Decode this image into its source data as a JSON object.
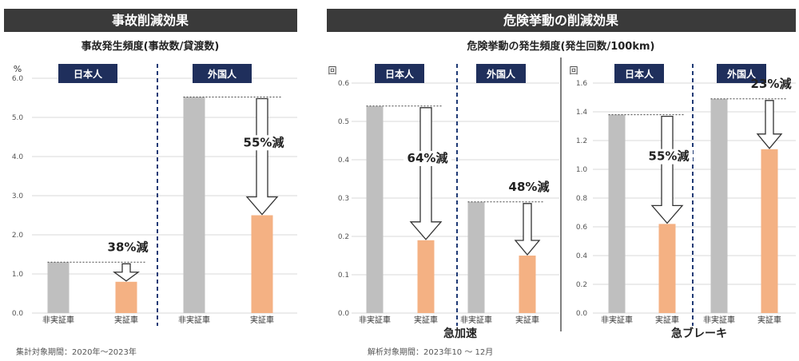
{
  "colors": {
    "header_bg": "#3a3a3a",
    "group_label_bg": "#1f2f5c",
    "divider": "#1f3a75",
    "gray_bar": "#bfbfbf",
    "orange_bar": "#f4b183",
    "grid": "#d9d9d9"
  },
  "left_panel": {
    "header": "事故削減効果",
    "subtitle": "事故発生頻度(事故数/貸渡数)",
    "note": "集計対象期間：2020年〜2023年"
  },
  "right_panel": {
    "header": "危険挙動の削減効果",
    "subtitle": "危険挙動の発生頻度(発生回数/100km)",
    "note": "解析対象期間：2023年10 〜 12月"
  },
  "chart_data": [
    {
      "type": "bar",
      "title": "",
      "unit": "%",
      "ylim": [
        0,
        6
      ],
      "yticks": [
        "0.0",
        "1.0",
        "2.0",
        "3.0",
        "4.0",
        "5.0",
        "6.0"
      ],
      "groups": [
        {
          "name": "日本人",
          "categories": [
            "非実証車",
            "実証車"
          ],
          "values": [
            1.3,
            0.8
          ],
          "reduction": "38%減"
        },
        {
          "name": "外国人",
          "categories": [
            "非実証車",
            "実証車"
          ],
          "values": [
            5.52,
            2.5
          ],
          "reduction": "55%減"
        }
      ]
    },
    {
      "type": "bar",
      "title": "急加速",
      "unit": "回",
      "ylim": [
        0,
        0.6
      ],
      "yticks": [
        "0.0",
        "0.1",
        "0.2",
        "0.3",
        "0.4",
        "0.5",
        "0.6"
      ],
      "groups": [
        {
          "name": "日本人",
          "categories": [
            "非実証車",
            "実証車"
          ],
          "values": [
            0.54,
            0.19
          ],
          "reduction": "64%減"
        },
        {
          "name": "外国人",
          "categories": [
            "非実証車",
            "実証車"
          ],
          "values": [
            0.29,
            0.15
          ],
          "reduction": "48%減"
        }
      ]
    },
    {
      "type": "bar",
      "title": "急ブレーキ",
      "unit": "回",
      "ylim": [
        0,
        1.6
      ],
      "yticks": [
        "0.0",
        "0.2",
        "0.4",
        "0.6",
        "0.8",
        "1.0",
        "1.2",
        "1.4",
        "1.6"
      ],
      "groups": [
        {
          "name": "日本人",
          "categories": [
            "非実証車",
            "実証車"
          ],
          "values": [
            1.38,
            0.62
          ],
          "reduction": "55%減"
        },
        {
          "name": "外国人",
          "categories": [
            "非実証車",
            "実証車"
          ],
          "values": [
            1.49,
            1.14
          ],
          "reduction": "23%減"
        }
      ]
    }
  ]
}
